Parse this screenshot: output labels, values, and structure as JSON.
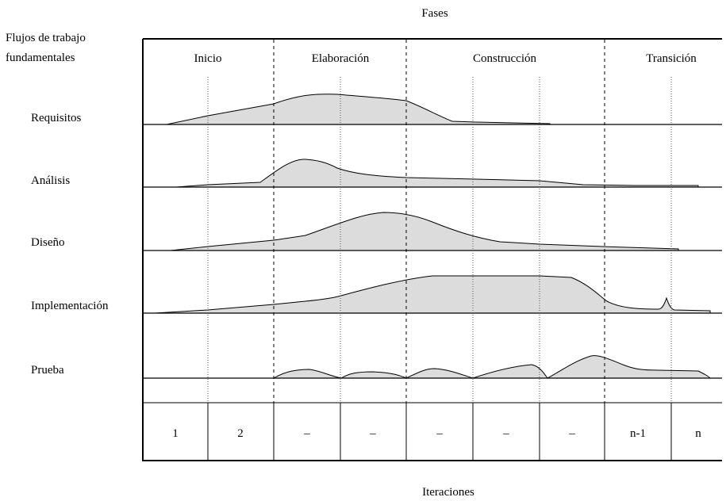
{
  "title": "Fases",
  "workflows_heading": [
    "Flujos de trabajo",
    "fundamentales"
  ],
  "phases": [
    "Inicio",
    "Elaboración",
    "Construcción",
    "Transición"
  ],
  "workflows": [
    "Requisitos",
    "Análisis",
    "Diseño",
    "Implementación",
    "Prueba"
  ],
  "iterations": [
    "1",
    "2",
    "–",
    "–",
    "–",
    "–",
    "–",
    "n-1",
    "n"
  ],
  "footer": "Iteraciones"
}
